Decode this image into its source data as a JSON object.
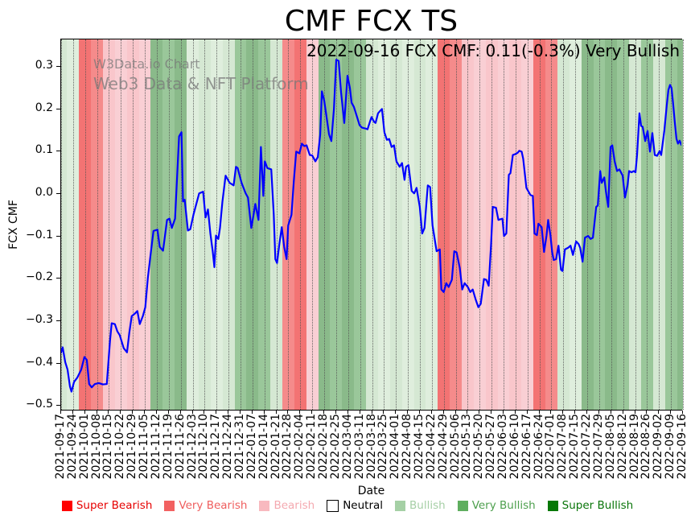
{
  "watermark": {
    "line1": "W3Data.io Chart",
    "line2": "Web3 Data & NFT Platform"
  },
  "legend": {
    "items": [
      {
        "label": "Super Bearish",
        "swatch": "#ff0000",
        "text_color": "#e60000",
        "border": false
      },
      {
        "label": "Very Bearish",
        "swatch": "#f26161",
        "text_color": "#ef5e5e",
        "border": false
      },
      {
        "label": "Bearish",
        "swatch": "#f8b9bf",
        "text_color": "#f4a9b0",
        "border": false
      },
      {
        "label": "Neutral",
        "swatch": "#ffffff",
        "text_color": "#000000",
        "border": true
      },
      {
        "label": "Bullish",
        "swatch": "#a5d0a5",
        "text_color": "#a6cfa6",
        "border": false
      },
      {
        "label": "Very Bullish",
        "swatch": "#5fae5f",
        "text_color": "#4d9f4d",
        "border": false
      },
      {
        "label": "Super Bullish",
        "swatch": "#077807",
        "text_color": "#097509",
        "border": false
      }
    ]
  },
  "chart_data": {
    "type": "line",
    "title": "CMF FCX TS",
    "xlabel": "Date",
    "ylabel": "FCX CMF",
    "annotation": "2022-09-16 FCX CMF: 0.11(-0.3%) Very Bullish",
    "ylim": [
      -0.513,
      0.365
    ],
    "yticks": [
      0.3,
      0.2,
      0.1,
      0.0,
      -0.1,
      -0.2,
      -0.3,
      -0.4,
      -0.5
    ],
    "ytick_labels": [
      "0.3",
      "0.2",
      "0.1",
      "0.0",
      "−0.1",
      "−0.2",
      "−0.3",
      "−0.4",
      "−0.5"
    ],
    "grid": "vertical-dotted-per-week",
    "legend_position": "bottom-center",
    "x_dates": [
      "2021-09-17",
      "2021-09-24",
      "2021-10-01",
      "2021-10-08",
      "2021-10-15",
      "2021-10-22",
      "2021-10-29",
      "2021-11-05",
      "2021-11-12",
      "2021-11-19",
      "2021-11-26",
      "2021-12-03",
      "2021-12-10",
      "2021-12-17",
      "2021-12-24",
      "2021-12-31",
      "2022-01-07",
      "2022-01-14",
      "2022-01-21",
      "2022-01-28",
      "2022-02-04",
      "2022-02-11",
      "2022-02-18",
      "2022-02-25",
      "2022-03-04",
      "2022-03-11",
      "2022-03-18",
      "2022-03-25",
      "2022-04-01",
      "2022-04-08",
      "2022-04-15",
      "2022-04-22",
      "2022-04-29",
      "2022-05-06",
      "2022-05-13",
      "2022-05-20",
      "2022-05-27",
      "2022-06-03",
      "2022-06-10",
      "2022-06-17",
      "2022-06-24",
      "2022-07-01",
      "2022-07-08",
      "2022-07-15",
      "2022-07-22",
      "2022-07-29",
      "2022-08-05",
      "2022-08-12",
      "2022-08-19",
      "2022-08-26",
      "2022-09-02",
      "2022-09-09",
      "2022-09-16"
    ],
    "band_classes": [
      "bullish",
      "bullish",
      "very-bearish",
      "very-bearish",
      "bearish",
      "bearish",
      "bearish",
      "bearish",
      "very-bullish",
      "very-bullish",
      "very-bullish",
      "bullish",
      "bullish",
      "bullish",
      "bullish",
      "very-bullish",
      "very-bullish",
      "very-bullish",
      "bullish",
      "very-bearish",
      "very-bearish",
      "bearish",
      "very-bullish",
      "very-bullish",
      "very-bullish",
      "very-bullish",
      "bullish",
      "bullish",
      "bullish",
      "bullish",
      "bullish",
      "bullish",
      "very-bearish",
      "very-bearish",
      "bearish",
      "bearish",
      "bearish",
      "bearish",
      "bearish",
      "bearish",
      "very-bearish",
      "very-bearish",
      "bullish",
      "bullish",
      "very-bullish",
      "very-bullish",
      "very-bullish",
      "very-bullish",
      "bullish",
      "very-bullish",
      "bullish",
      "very-bullish",
      "very-bullish"
    ],
    "band_colors": {
      "super-bearish": [
        "#ff0000",
        "#ff0000"
      ],
      "very-bearish": [
        "#f37373",
        "#f58b8b"
      ],
      "bearish": [
        "#f9c6cb",
        "#f9cfd4"
      ],
      "neutral": [
        "#ffffff",
        "#ffffff"
      ],
      "bullish": [
        "#d5e8d3",
        "#dfeedd"
      ],
      "very-bullish": [
        "#8aba8a",
        "#9ac79a"
      ],
      "super-bullish": [
        "#077807",
        "#077807"
      ]
    },
    "line": {
      "name": "FCX CMF",
      "color": "#0000ff",
      "width": 2.2
    },
    "points": [
      [
        0.0,
        -0.377
      ],
      [
        0.13,
        -0.365
      ],
      [
        0.34,
        -0.4
      ],
      [
        0.54,
        -0.418
      ],
      [
        0.74,
        -0.458
      ],
      [
        0.87,
        -0.47
      ],
      [
        1.08,
        -0.447
      ],
      [
        1.35,
        -0.437
      ],
      [
        1.68,
        -0.418
      ],
      [
        1.95,
        -0.388
      ],
      [
        2.15,
        -0.395
      ],
      [
        2.35,
        -0.452
      ],
      [
        2.56,
        -0.46
      ],
      [
        2.83,
        -0.452
      ],
      [
        3.16,
        -0.45
      ],
      [
        3.5,
        -0.453
      ],
      [
        3.83,
        -0.452
      ],
      [
        4.1,
        -0.35
      ],
      [
        4.24,
        -0.308
      ],
      [
        4.51,
        -0.31
      ],
      [
        4.71,
        -0.327
      ],
      [
        4.91,
        -0.336
      ],
      [
        5.25,
        -0.367
      ],
      [
        5.52,
        -0.377
      ],
      [
        5.72,
        -0.33
      ],
      [
        5.92,
        -0.291
      ],
      [
        6.19,
        -0.285
      ],
      [
        6.39,
        -0.279
      ],
      [
        6.59,
        -0.31
      ],
      [
        6.86,
        -0.29
      ],
      [
        7.06,
        -0.27
      ],
      [
        7.27,
        -0.2
      ],
      [
        7.53,
        -0.139
      ],
      [
        7.74,
        -0.089
      ],
      [
        8.07,
        -0.086
      ],
      [
        8.27,
        -0.127
      ],
      [
        8.54,
        -0.136
      ],
      [
        8.88,
        -0.063
      ],
      [
        9.08,
        -0.06
      ],
      [
        9.28,
        -0.082
      ],
      [
        9.55,
        -0.06
      ],
      [
        9.89,
        0.135
      ],
      [
        10.09,
        0.145
      ],
      [
        10.22,
        -0.019
      ],
      [
        10.36,
        -0.015
      ],
      [
        10.63,
        -0.088
      ],
      [
        10.83,
        -0.085
      ],
      [
        11.1,
        -0.05
      ],
      [
        11.57,
        0.0
      ],
      [
        11.91,
        0.004
      ],
      [
        12.11,
        -0.057
      ],
      [
        12.31,
        -0.038
      ],
      [
        12.51,
        -0.095
      ],
      [
        12.71,
        -0.137
      ],
      [
        12.85,
        -0.175
      ],
      [
        12.98,
        -0.1
      ],
      [
        13.18,
        -0.108
      ],
      [
        13.32,
        -0.082
      ],
      [
        13.52,
        -0.02
      ],
      [
        13.79,
        0.042
      ],
      [
        14.13,
        0.025
      ],
      [
        14.46,
        0.019
      ],
      [
        14.66,
        0.063
      ],
      [
        14.8,
        0.06
      ],
      [
        15.13,
        0.025
      ],
      [
        15.47,
        0.0
      ],
      [
        15.67,
        -0.01
      ],
      [
        15.94,
        -0.082
      ],
      [
        16.14,
        -0.05
      ],
      [
        16.28,
        -0.025
      ],
      [
        16.55,
        -0.063
      ],
      [
        16.75,
        0.11
      ],
      [
        16.95,
        -0.006
      ],
      [
        17.08,
        0.076
      ],
      [
        17.29,
        0.06
      ],
      [
        17.62,
        0.057
      ],
      [
        17.83,
        -0.05
      ],
      [
        17.96,
        -0.156
      ],
      [
        18.1,
        -0.165
      ],
      [
        18.3,
        -0.12
      ],
      [
        18.5,
        -0.08
      ],
      [
        18.7,
        -0.127
      ],
      [
        18.9,
        -0.156
      ],
      [
        19.04,
        -0.076
      ],
      [
        19.31,
        -0.051
      ],
      [
        19.51,
        0.029
      ],
      [
        19.71,
        0.099
      ],
      [
        19.98,
        0.095
      ],
      [
        20.18,
        0.118
      ],
      [
        20.38,
        0.112
      ],
      [
        20.58,
        0.114
      ],
      [
        20.85,
        0.091
      ],
      [
        21.05,
        0.09
      ],
      [
        21.32,
        0.076
      ],
      [
        21.52,
        0.086
      ],
      [
        21.72,
        0.139
      ],
      [
        21.86,
        0.242
      ],
      [
        22.06,
        0.22
      ],
      [
        22.26,
        0.18
      ],
      [
        22.46,
        0.14
      ],
      [
        22.66,
        0.124
      ],
      [
        22.87,
        0.2
      ],
      [
        23.07,
        0.317
      ],
      [
        23.27,
        0.314
      ],
      [
        23.47,
        0.24
      ],
      [
        23.74,
        0.167
      ],
      [
        24.01,
        0.279
      ],
      [
        24.21,
        0.25
      ],
      [
        24.35,
        0.215
      ],
      [
        24.55,
        0.205
      ],
      [
        24.82,
        0.18
      ],
      [
        25.02,
        0.162
      ],
      [
        25.22,
        0.156
      ],
      [
        25.49,
        0.154
      ],
      [
        25.69,
        0.152
      ],
      [
        25.89,
        0.17
      ],
      [
        26.03,
        0.181
      ],
      [
        26.23,
        0.17
      ],
      [
        26.36,
        0.167
      ],
      [
        26.57,
        0.19
      ],
      [
        26.77,
        0.196
      ],
      [
        26.9,
        0.2
      ],
      [
        27.1,
        0.145
      ],
      [
        27.31,
        0.127
      ],
      [
        27.51,
        0.129
      ],
      [
        27.71,
        0.11
      ],
      [
        27.91,
        0.114
      ],
      [
        28.11,
        0.076
      ],
      [
        28.38,
        0.063
      ],
      [
        28.58,
        0.072
      ],
      [
        28.79,
        0.032
      ],
      [
        28.92,
        0.063
      ],
      [
        29.12,
        0.067
      ],
      [
        29.39,
        0.006
      ],
      [
        29.6,
        0.0
      ],
      [
        29.8,
        0.013
      ],
      [
        30.07,
        -0.032
      ],
      [
        30.27,
        -0.095
      ],
      [
        30.47,
        -0.082
      ],
      [
        30.74,
        0.019
      ],
      [
        30.94,
        0.015
      ],
      [
        31.14,
        -0.076
      ],
      [
        31.48,
        -0.137
      ],
      [
        31.75,
        -0.133
      ],
      [
        31.88,
        -0.228
      ],
      [
        32.08,
        -0.234
      ],
      [
        32.29,
        -0.213
      ],
      [
        32.49,
        -0.222
      ],
      [
        32.76,
        -0.205
      ],
      [
        32.96,
        -0.137
      ],
      [
        33.16,
        -0.14
      ],
      [
        33.43,
        -0.177
      ],
      [
        33.63,
        -0.228
      ],
      [
        33.83,
        -0.213
      ],
      [
        34.1,
        -0.222
      ],
      [
        34.3,
        -0.234
      ],
      [
        34.51,
        -0.228
      ],
      [
        34.77,
        -0.253
      ],
      [
        34.98,
        -0.27
      ],
      [
        35.18,
        -0.262
      ],
      [
        35.45,
        -0.203
      ],
      [
        35.65,
        -0.205
      ],
      [
        35.85,
        -0.219
      ],
      [
        36.05,
        -0.12
      ],
      [
        36.19,
        -0.032
      ],
      [
        36.46,
        -0.034
      ],
      [
        36.66,
        -0.063
      ],
      [
        37.0,
        -0.06
      ],
      [
        37.13,
        -0.101
      ],
      [
        37.33,
        -0.095
      ],
      [
        37.54,
        0.044
      ],
      [
        37.67,
        0.048
      ],
      [
        37.87,
        0.091
      ],
      [
        38.07,
        0.093
      ],
      [
        38.27,
        0.096
      ],
      [
        38.41,
        0.101
      ],
      [
        38.61,
        0.099
      ],
      [
        38.74,
        0.082
      ],
      [
        39.01,
        0.013
      ],
      [
        39.35,
        -0.004
      ],
      [
        39.55,
        -0.006
      ],
      [
        39.69,
        -0.095
      ],
      [
        39.89,
        -0.099
      ],
      [
        40.02,
        -0.072
      ],
      [
        40.29,
        -0.08
      ],
      [
        40.49,
        -0.139
      ],
      [
        40.7,
        -0.1
      ],
      [
        40.83,
        -0.063
      ],
      [
        41.03,
        -0.1
      ],
      [
        41.17,
        -0.139
      ],
      [
        41.3,
        -0.158
      ],
      [
        41.5,
        -0.156
      ],
      [
        41.7,
        -0.124
      ],
      [
        41.91,
        -0.181
      ],
      [
        42.04,
        -0.184
      ],
      [
        42.24,
        -0.133
      ],
      [
        42.51,
        -0.129
      ],
      [
        42.71,
        -0.124
      ],
      [
        42.91,
        -0.146
      ],
      [
        43.18,
        -0.114
      ],
      [
        43.38,
        -0.12
      ],
      [
        43.52,
        -0.129
      ],
      [
        43.72,
        -0.162
      ],
      [
        43.92,
        -0.105
      ],
      [
        44.19,
        -0.101
      ],
      [
        44.39,
        -0.108
      ],
      [
        44.59,
        -0.105
      ],
      [
        44.86,
        -0.032
      ],
      [
        45.0,
        -0.029
      ],
      [
        45.2,
        0.053
      ],
      [
        45.33,
        0.025
      ],
      [
        45.54,
        0.038
      ],
      [
        45.67,
        0.006
      ],
      [
        45.87,
        -0.032
      ],
      [
        46.07,
        0.11
      ],
      [
        46.21,
        0.114
      ],
      [
        46.41,
        0.076
      ],
      [
        46.61,
        0.053
      ],
      [
        46.81,
        0.057
      ],
      [
        47.08,
        0.042
      ],
      [
        47.28,
        -0.01
      ],
      [
        47.49,
        0.02
      ],
      [
        47.62,
        0.053
      ],
      [
        47.82,
        0.05
      ],
      [
        48.02,
        0.053
      ],
      [
        48.16,
        0.05
      ],
      [
        48.29,
        0.09
      ],
      [
        48.49,
        0.19
      ],
      [
        48.63,
        0.16
      ],
      [
        48.76,
        0.158
      ],
      [
        48.97,
        0.124
      ],
      [
        49.17,
        0.148
      ],
      [
        49.37,
        0.099
      ],
      [
        49.57,
        0.143
      ],
      [
        49.77,
        0.091
      ],
      [
        49.97,
        0.089
      ],
      [
        50.18,
        0.1
      ],
      [
        50.31,
        0.091
      ],
      [
        50.58,
        0.15
      ],
      [
        50.78,
        0.21
      ],
      [
        50.92,
        0.245
      ],
      [
        51.05,
        0.257
      ],
      [
        51.18,
        0.25
      ],
      [
        51.32,
        0.21
      ],
      [
        51.45,
        0.17
      ],
      [
        51.59,
        0.13
      ],
      [
        51.72,
        0.118
      ],
      [
        51.86,
        0.125
      ],
      [
        52.0,
        0.115
      ]
    ]
  }
}
